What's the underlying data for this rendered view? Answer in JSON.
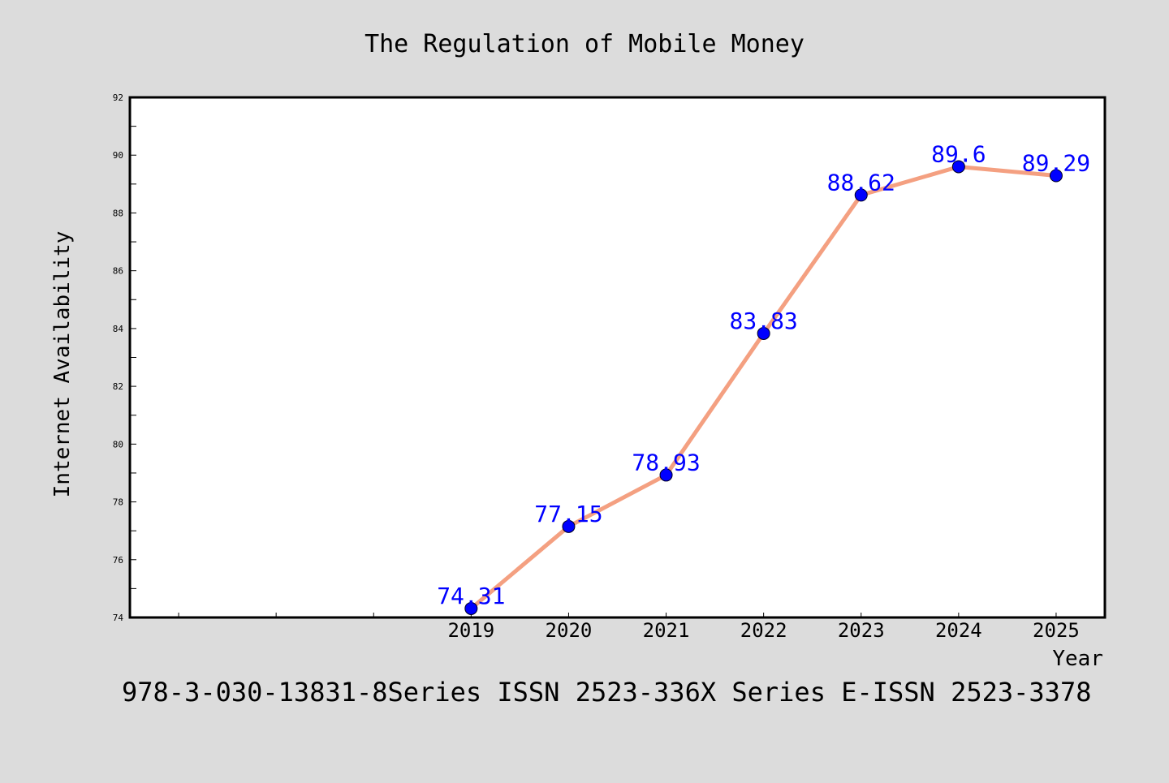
{
  "chart_data": {
    "type": "line",
    "title": "The Regulation of Mobile Money",
    "xlabel": "Year",
    "ylabel": "Internet Availability",
    "footnote": "978-3-030-13831-8Series ISSN 2523-336X Series E-ISSN 2523-3378",
    "categories": [
      "2019",
      "2020",
      "2021",
      "2022",
      "2023",
      "2024",
      "2025"
    ],
    "series": [
      {
        "values": [
          74.31,
          77.15,
          78.93,
          83.83,
          88.62,
          89.6,
          89.29
        ],
        "labels": [
          "74.31",
          "77.15",
          "78.93",
          "83.83",
          "88.62",
          "89.6",
          "89.29"
        ]
      }
    ],
    "ylim": [
      74,
      92
    ],
    "yticks": [
      74,
      76,
      78,
      80,
      82,
      84,
      86,
      88,
      90,
      92
    ],
    "ytick_labels": [
      "74",
      "76",
      "78",
      "80",
      "82",
      "84",
      "86",
      "88",
      "90",
      "92"
    ],
    "xlim_slots": [
      -3.5,
      6.5
    ],
    "grid": false,
    "colors": {
      "line": "#f4a081",
      "marker": "#0000ff",
      "label": "#0000ff",
      "background": "#dcdcdc",
      "plot_background": "#ffffff"
    }
  }
}
